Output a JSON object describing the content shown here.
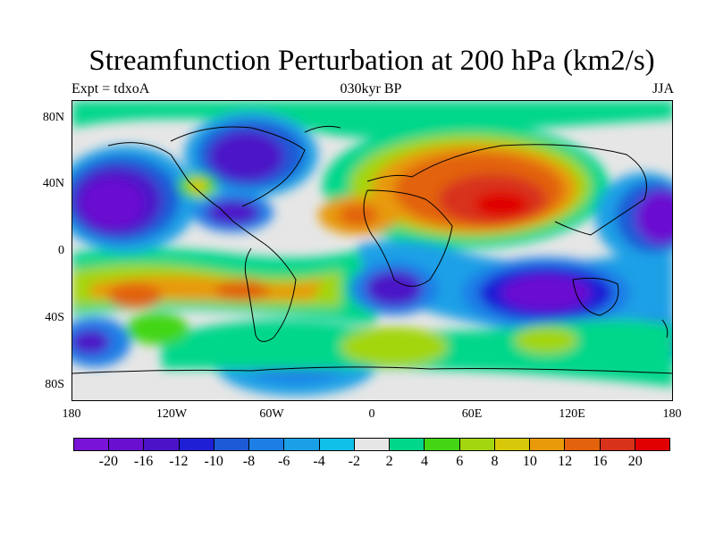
{
  "title": "Streamfunction Perturbation at 200 hPa (km2/s)",
  "subtitle_left": "Expt = tdxoA",
  "subtitle_center": "030kyr BP",
  "subtitle_right": "JJA",
  "axes": {
    "lat_labels": [
      "80N",
      "40N",
      "0",
      "40S",
      "80S"
    ],
    "lon_labels": [
      "180",
      "120W",
      "60W",
      "0",
      "60E",
      "120E",
      "180"
    ]
  },
  "colorbar": {
    "labels": [
      "-20",
      "-16",
      "-12",
      "-10",
      "-8",
      "-6",
      "-4",
      "-2",
      "2",
      "4",
      "6",
      "8",
      "10",
      "12",
      "16",
      "20"
    ],
    "colors": [
      "#7a13d8",
      "#6a0fd0",
      "#4b12c8",
      "#1f1fd6",
      "#1d5ad6",
      "#1d7ee6",
      "#1aa0e6",
      "#10c0e8",
      "#e6e6e6",
      "#00d78a",
      "#42d614",
      "#a3d60e",
      "#d8c80a",
      "#e89a0a",
      "#e2620e",
      "#d8321a",
      "#e00000"
    ]
  },
  "colors": {
    "land_outline": "#000000",
    "background": "#e6e6e6"
  }
}
